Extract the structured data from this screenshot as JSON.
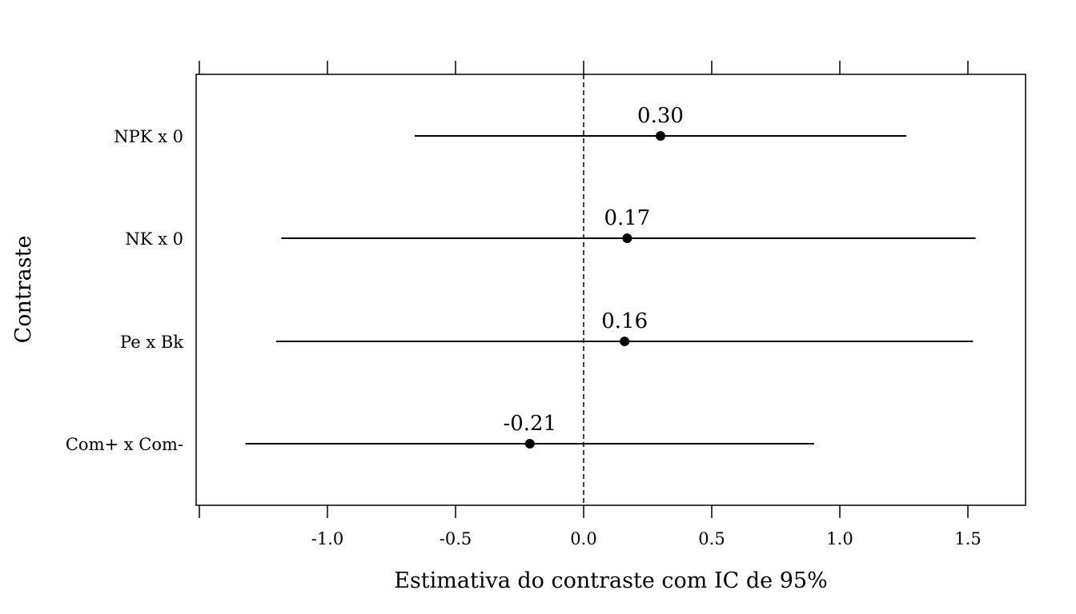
{
  "chart_data": {
    "type": "scatter",
    "subtype": "forest-plot-with-confidence-intervals",
    "xlabel": "Estimativa do contraste com IC de 95%",
    "ylabel": "Contraste",
    "xlim": [
      -1.5,
      1.72
    ],
    "xticks": [
      -1.0,
      -0.5,
      0.0,
      0.5,
      1.0,
      1.5
    ],
    "xtick_labels": [
      "-1.0",
      "-0.5",
      "0.0",
      "0.5",
      "1.0",
      "1.5"
    ],
    "reference_line": {
      "x": 0.0,
      "style": "dashed"
    },
    "grid": false,
    "legend": "none",
    "categories": [
      "NPK x 0",
      "NK x 0",
      "Pe x Bk",
      "Com+ x Com-"
    ],
    "estimates": [
      0.3,
      0.17,
      0.16,
      -0.21
    ],
    "estimate_labels": [
      "0.30",
      "0.17",
      "0.16",
      "-0.21"
    ],
    "ci_lower": [
      -0.66,
      -1.18,
      -1.2,
      -1.32
    ],
    "ci_upper": [
      1.26,
      1.53,
      1.52,
      0.9
    ]
  }
}
